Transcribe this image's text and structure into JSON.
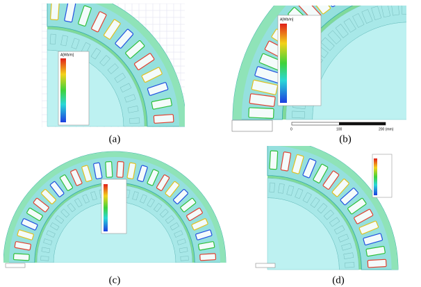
{
  "panels": [
    {
      "caption": "(a)",
      "legend_title": "A[Wb/m]"
    },
    {
      "caption": "(b)",
      "legend_title": "A[Wb/m]",
      "scale_labels": [
        "0",
        "100",
        "200 (mm)"
      ]
    },
    {
      "caption": "(c)"
    },
    {
      "caption": "(d)"
    }
  ]
}
